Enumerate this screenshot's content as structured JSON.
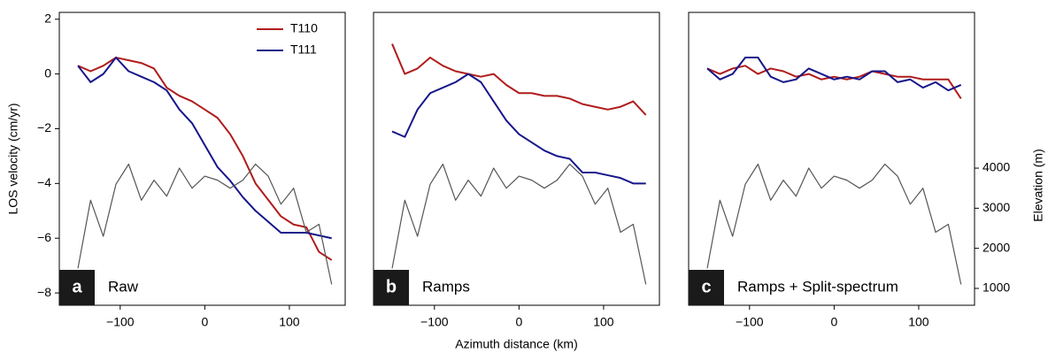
{
  "chart_data": [
    {
      "type": "line",
      "panel": "a",
      "title": "Raw",
      "ylabel": "LOS velocity (cm/yr)",
      "legend": "upper right",
      "x": [
        -150,
        -135,
        -120,
        -105,
        -90,
        -75,
        -60,
        -45,
        -30,
        -15,
        0,
        15,
        30,
        45,
        60,
        75,
        90,
        105,
        120,
        135,
        150
      ],
      "xlim": [
        -172,
        166
      ],
      "xticks": [
        {
          "value": -100,
          "label": "−100"
        },
        0,
        100
      ],
      "ylim": [
        -8.45,
        2.25
      ],
      "yticks": [
        2,
        0,
        {
          "value": -2,
          "label": "−2"
        },
        {
          "value": -4,
          "label": "−4"
        },
        {
          "value": -6,
          "label": "−6"
        },
        {
          "value": -8,
          "label": "−8"
        }
      ],
      "y2lim": [
        580,
        7885
      ],
      "series": [
        {
          "name": "T110",
          "color": "#b01c1c",
          "values": [
            0.3,
            0.1,
            0.3,
            0.6,
            0.5,
            0.4,
            0.2,
            -0.5,
            -0.8,
            -1.0,
            -1.3,
            -1.6,
            -2.2,
            -3.0,
            -4.0,
            -4.6,
            -5.2,
            -5.5,
            -5.6,
            -6.5,
            -6.8
          ]
        },
        {
          "name": "T111",
          "color": "#16168a",
          "values": [
            0.3,
            -0.3,
            0.0,
            0.6,
            0.1,
            -0.1,
            -0.3,
            -0.6,
            -1.3,
            -1.8,
            -2.6,
            -3.4,
            -3.9,
            -4.5,
            -5.0,
            -5.4,
            -5.8,
            -5.8,
            -5.8,
            -5.9,
            -6.0
          ]
        },
        {
          "color": "#555555",
          "axis": "y2",
          "values": [
            1500,
            3200,
            2300,
            3600,
            4100,
            3200,
            3700,
            3300,
            4000,
            3500,
            3800,
            3700,
            3500,
            3700,
            4100,
            3800,
            3100,
            3500,
            2400,
            2600,
            1100
          ]
        }
      ]
    },
    {
      "type": "line",
      "panel": "b",
      "title": "Ramps",
      "xlabel": "Azimuth distance (km)",
      "x": [
        -150,
        -135,
        -120,
        -105,
        -90,
        -75,
        -60,
        -45,
        -30,
        -15,
        0,
        15,
        30,
        45,
        60,
        75,
        90,
        105,
        120,
        135,
        150
      ],
      "xlim": [
        -172,
        166
      ],
      "xticks": [
        {
          "value": -100,
          "label": "−100"
        },
        0,
        100
      ],
      "ylim": [
        -8.45,
        2.25
      ],
      "y2lim": [
        580,
        7885
      ],
      "series": [
        {
          "name": "T110",
          "color": "#b01c1c",
          "values": [
            1.1,
            0.0,
            0.2,
            0.6,
            0.3,
            0.1,
            0.0,
            -0.1,
            0.0,
            -0.4,
            -0.7,
            -0.7,
            -0.8,
            -0.8,
            -0.9,
            -1.1,
            -1.2,
            -1.3,
            -1.2,
            -1.0,
            -1.5
          ]
        },
        {
          "name": "T111",
          "color": "#16168a",
          "values": [
            -2.1,
            -2.3,
            -1.3,
            -0.7,
            -0.5,
            -0.3,
            0.0,
            -0.3,
            -1.0,
            -1.7,
            -2.2,
            -2.5,
            -2.8,
            -3.0,
            -3.1,
            -3.6,
            -3.6,
            -3.7,
            -3.8,
            -4.0,
            -4.0
          ]
        },
        {
          "color": "#555555",
          "axis": "y2",
          "values": [
            1500,
            3200,
            2300,
            3600,
            4100,
            3200,
            3700,
            3300,
            4000,
            3500,
            3800,
            3700,
            3500,
            3700,
            4100,
            3800,
            3100,
            3500,
            2400,
            2600,
            1100
          ]
        }
      ]
    },
    {
      "type": "line",
      "panel": "c",
      "title": "Ramps + Split-spectrum",
      "y2label": "Elevation (m)",
      "x": [
        -150,
        -135,
        -120,
        -105,
        -90,
        -75,
        -60,
        -45,
        -30,
        -15,
        0,
        15,
        30,
        45,
        60,
        75,
        90,
        105,
        120,
        135,
        150
      ],
      "xlim": [
        -172,
        166
      ],
      "xticks": [
        {
          "value": -100,
          "label": "−100"
        },
        0,
        100
      ],
      "ylim": [
        -8.45,
        2.25
      ],
      "y2lim": [
        580,
        7885
      ],
      "y2ticks": [
        1000,
        2000,
        3000,
        4000
      ],
      "series": [
        {
          "name": "T110",
          "color": "#b01c1c",
          "values": [
            0.2,
            0.0,
            0.2,
            0.3,
            0.0,
            0.2,
            0.1,
            -0.1,
            0.0,
            -0.2,
            -0.1,
            -0.2,
            -0.1,
            0.1,
            0.0,
            -0.1,
            -0.1,
            -0.2,
            -0.2,
            -0.2,
            -0.9
          ]
        },
        {
          "name": "T111",
          "color": "#16168a",
          "values": [
            0.2,
            -0.2,
            0.0,
            0.6,
            0.6,
            -0.1,
            -0.3,
            -0.2,
            0.2,
            0.0,
            -0.2,
            -0.1,
            -0.2,
            0.1,
            0.1,
            -0.3,
            -0.2,
            -0.5,
            -0.3,
            -0.6,
            -0.4
          ]
        },
        {
          "color": "#555555",
          "axis": "y2",
          "values": [
            1500,
            3200,
            2300,
            3600,
            4100,
            3200,
            3700,
            3300,
            4000,
            3500,
            3800,
            3700,
            3500,
            3700,
            4100,
            3800,
            3100,
            3500,
            2400,
            2600,
            1100
          ]
        }
      ]
    }
  ]
}
